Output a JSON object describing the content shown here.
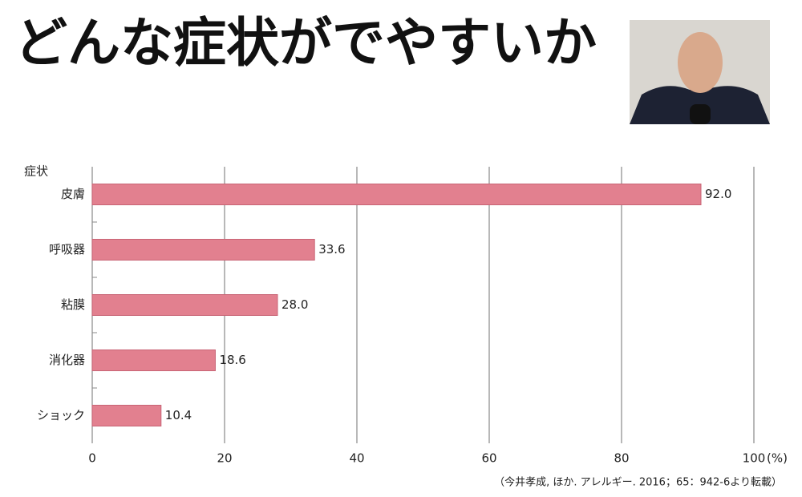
{
  "chart_data": {
    "type": "bar",
    "orientation": "horizontal",
    "title": "どんな症状がでやすいか",
    "y_label": "症状",
    "x_label": "(%)",
    "categories": [
      "皮膚",
      "呼吸器",
      "粘膜",
      "消化器",
      "ショック"
    ],
    "values": [
      92.0,
      33.6,
      28.0,
      18.6,
      10.4
    ],
    "value_labels": [
      "92.0",
      "33.6",
      "28.0",
      "18.6",
      "10.4"
    ],
    "color": "#e2808f",
    "xlim": [
      0,
      100
    ],
    "xticks": [
      0,
      20,
      40,
      60,
      80,
      100
    ],
    "grid": true,
    "source": "（今井孝成, ほか. アレルギー. 2016；65：942-6より転載）"
  }
}
